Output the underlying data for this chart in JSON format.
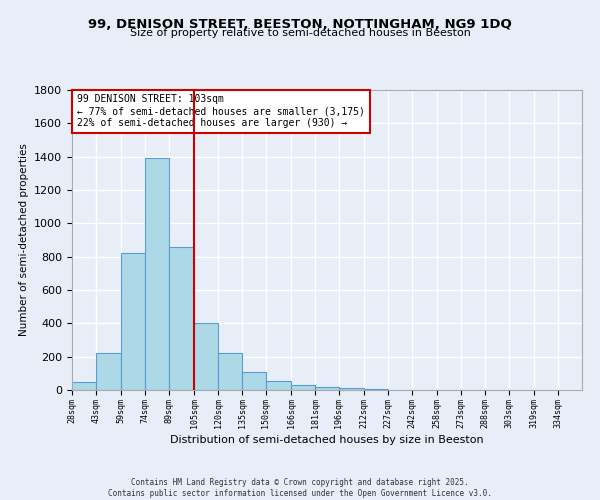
{
  "title": "99, DENISON STREET, BEESTON, NOTTINGHAM, NG9 1DQ",
  "subtitle": "Size of property relative to semi-detached houses in Beeston",
  "xlabel": "Distribution of semi-detached houses by size in Beeston",
  "ylabel": "Number of semi-detached properties",
  "bin_labels": [
    "28sqm",
    "43sqm",
    "59sqm",
    "74sqm",
    "89sqm",
    "105sqm",
    "120sqm",
    "135sqm",
    "150sqm",
    "166sqm",
    "181sqm",
    "196sqm",
    "212sqm",
    "227sqm",
    "242sqm",
    "258sqm",
    "273sqm",
    "288sqm",
    "303sqm",
    "319sqm",
    "334sqm"
  ],
  "bin_edges": [
    28,
    43,
    59,
    74,
    89,
    105,
    120,
    135,
    150,
    166,
    181,
    196,
    212,
    227,
    242,
    258,
    273,
    288,
    303,
    319,
    334
  ],
  "bar_values": [
    50,
    225,
    820,
    1390,
    860,
    400,
    225,
    110,
    55,
    30,
    20,
    10,
    5,
    2,
    1,
    1,
    0,
    0,
    0,
    0
  ],
  "bar_color": "#add8e6",
  "bar_edge_color": "#5b9bd5",
  "property_line_x": 105,
  "vline_color": "#cc0000",
  "annotation_title": "99 DENISON STREET: 103sqm",
  "annotation_line1": "← 77% of semi-detached houses are smaller (3,175)",
  "annotation_line2": "22% of semi-detached houses are larger (930) →",
  "annotation_box_color": "#ffffff",
  "annotation_box_edge": "#cc0000",
  "ylim": [
    0,
    1800
  ],
  "yticks": [
    0,
    200,
    400,
    600,
    800,
    1000,
    1200,
    1400,
    1600,
    1800
  ],
  "background_color": "#e8eef8",
  "grid_color": "#ffffff",
  "footer_line1": "Contains HM Land Registry data © Crown copyright and database right 2025.",
  "footer_line2": "Contains public sector information licensed under the Open Government Licence v3.0."
}
